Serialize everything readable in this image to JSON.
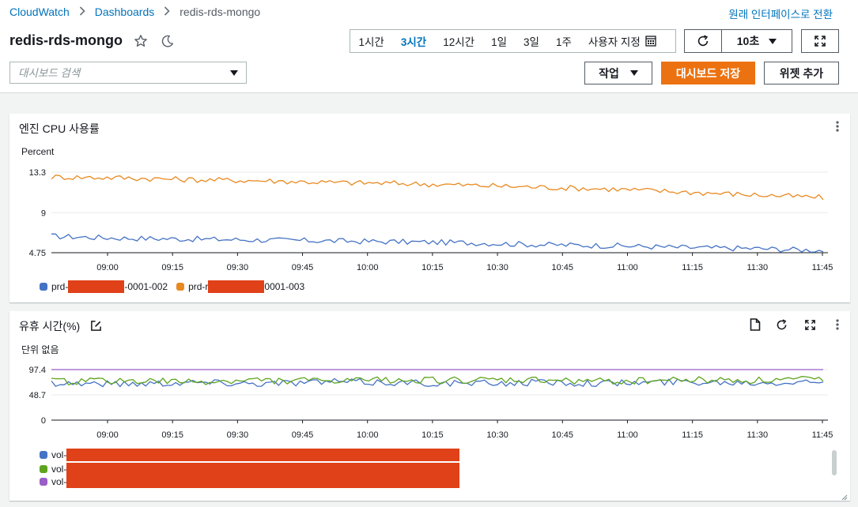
{
  "breadcrumb": [
    "CloudWatch",
    "Dashboards",
    "redis-rds-mongo"
  ],
  "switch_ui": "원래 인터페이스로 전환",
  "dashboard": {
    "title": "redis-rds-mongo"
  },
  "time_ranges": [
    "1시간",
    "3시간",
    "12시간",
    "1일",
    "3일",
    "1주",
    "사용자 지정"
  ],
  "active_range": "3시간",
  "refresh": {
    "interval": "10초"
  },
  "search": {
    "placeholder": "대시보드 검색",
    "value": ""
  },
  "actions": {
    "label": "작업",
    "save": "대시보드 저장",
    "add_widget": "위젯 추가"
  },
  "colors": {
    "accent": "#ec7211",
    "link": "#0073bb",
    "blue": "#4472c4",
    "orange": "#e8891f",
    "green": "#5ea31e",
    "purple": "#9a5ec7",
    "redaction": "#e04118"
  },
  "widgets": [
    {
      "title": "엔진 CPU 사용률",
      "unit": "Percent",
      "legend": [
        {
          "prefix": "prd-",
          "suffix": "-0001-002",
          "color": "#4472c4"
        },
        {
          "prefix": "prd-r",
          "suffix": "0001-003",
          "color": "#e8891f"
        }
      ]
    },
    {
      "title": "유휴 시간(%)",
      "unit": "단위 없음",
      "legend": [
        {
          "prefix": "vol-",
          "color": "#4472c4"
        },
        {
          "prefix": "vol-",
          "color": "#5ea31e"
        },
        {
          "prefix": "vol-",
          "color": "#9a5ec7"
        }
      ]
    }
  ],
  "chart_data": [
    {
      "type": "line",
      "title": "엔진 CPU 사용률",
      "ylabel": "Percent",
      "ylim": [
        4.75,
        13.3
      ],
      "yticks": [
        "13.3",
        "9",
        "4.75"
      ],
      "x": [
        "09:00",
        "09:15",
        "09:30",
        "09:45",
        "10:00",
        "10:15",
        "10:30",
        "10:45",
        "11:00",
        "11:15",
        "11:30",
        "11:45"
      ],
      "grid": true,
      "legend_position": "bottom-left",
      "series": [
        {
          "color": "#4472c4",
          "values": [
            6.5,
            6.3,
            6.2,
            6.1,
            6.0,
            5.9,
            5.8,
            5.6,
            5.5,
            5.3,
            5.2,
            5.0
          ]
        },
        {
          "color": "#e8891f",
          "values": [
            12.8,
            12.7,
            12.5,
            12.4,
            12.2,
            12.1,
            11.9,
            11.7,
            11.5,
            11.2,
            10.9,
            10.6
          ]
        }
      ]
    },
    {
      "type": "line",
      "title": "유휴 시간(%)",
      "ylabel": "단위 없음",
      "ylim": [
        0,
        97.4
      ],
      "yticks": [
        "97.4",
        "48.7",
        "0"
      ],
      "x": [
        "09:00",
        "09:15",
        "09:30",
        "09:45",
        "10:00",
        "10:15",
        "10:30",
        "10:45",
        "11:00",
        "11:15",
        "11:30",
        "11:45"
      ],
      "grid": true,
      "legend_position": "bottom-left",
      "series": [
        {
          "color": "#4472c4",
          "values": [
            72,
            70,
            73,
            71,
            74,
            72,
            70,
            73,
            71,
            74,
            73,
            75
          ]
        },
        {
          "color": "#5ea31e",
          "values": [
            74,
            76,
            73,
            77,
            75,
            78,
            76,
            77,
            75,
            78,
            77,
            79
          ]
        },
        {
          "color": "#9a5ec7",
          "values": [
            97.4,
            97.4,
            97.4,
            97.4,
            97.4,
            97.4,
            97.4,
            97.4,
            97.4,
            97.4,
            97.4,
            97.4
          ]
        }
      ]
    }
  ]
}
